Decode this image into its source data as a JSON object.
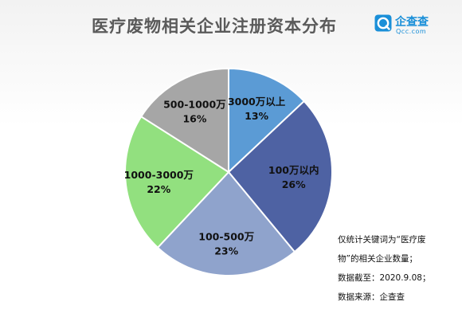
{
  "title": "医疗废物相关企业注册资本分布",
  "brand": {
    "name": "企查查",
    "domain": "Qcc.com",
    "icon": "qcc-logo-icon",
    "color": "#1a8fd8"
  },
  "chart_data": {
    "type": "pie",
    "title": "医疗废物相关企业注册资本分布",
    "unit": "%",
    "slices": [
      {
        "label": "3000万以上",
        "value": 13,
        "value_label": "13%",
        "color": "#5b9bd5"
      },
      {
        "label": "100万以内",
        "value": 26,
        "value_label": "26%",
        "color": "#4e62a3"
      },
      {
        "label": "100-500万",
        "value": 23,
        "value_label": "23%",
        "color": "#8fa3cc"
      },
      {
        "label": "1000-3000万",
        "value": 22,
        "value_label": "22%",
        "color": "#92e07f"
      },
      {
        "label": "500-1000万",
        "value": 16,
        "value_label": "16%",
        "color": "#a6a6a6"
      }
    ],
    "start": "12 o'clock",
    "direction": "clockwise",
    "legend": "none"
  },
  "notes": [
    "仅统计关键词为“医疗废",
    "物”的相关企业数量；",
    "数据截至：2020.9.08；",
    "数据来源：企查查"
  ]
}
